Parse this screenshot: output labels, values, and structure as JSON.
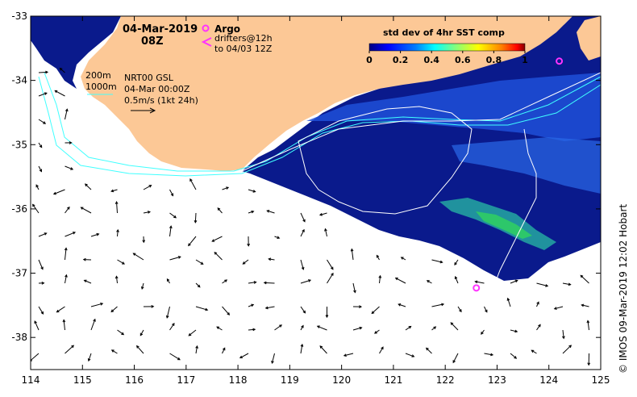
{
  "title": {
    "date": "04-Mar-2019",
    "hour": "08Z"
  },
  "legend": {
    "argo_label": "Argo",
    "drifters_line1": "drifters@12h",
    "drifters_line2": "to 04/03 12Z",
    "isobath_200": "200m",
    "isobath_1000": "1000m",
    "source_line1": "NRT00 GSL",
    "source_line2": "04-Mar 00:00Z",
    "vector_scale": "0.5m/s (1kt 24h)"
  },
  "colorbar": {
    "title": "std dev of 4hr SST comp",
    "ticks": [
      "0",
      "0.2",
      "0.4",
      "0.6",
      "0.8",
      "1"
    ],
    "range": [
      0,
      1
    ],
    "colors": [
      "#000080",
      "#0000ff",
      "#0080ff",
      "#00ffff",
      "#80ff80",
      "#ffff00",
      "#ff8000",
      "#ff0000",
      "#800000"
    ]
  },
  "axes": {
    "lon_ticks": [
      "114",
      "115",
      "116",
      "117",
      "118",
      "119",
      "120",
      "121",
      "122",
      "123",
      "124",
      "125"
    ],
    "lat_ticks": [
      "-33",
      "-34",
      "-35",
      "-36",
      "-37",
      "-38"
    ],
    "lon_range": [
      114,
      125
    ],
    "lat_range": [
      -38.5,
      -33
    ]
  },
  "credit": "© IMOS 09-Mar-2019 12:02 Hobart",
  "colors": {
    "land": "#fcc896",
    "ocean_data": "#0a1a8c",
    "isobath": "#40ffff",
    "contour": "#ffffff",
    "argo_marker": "#ff33ff"
  },
  "argo_floats": [
    {
      "lon": 122.6,
      "lat": -37.23
    },
    {
      "lon": 124.2,
      "lat": -33.7
    }
  ]
}
